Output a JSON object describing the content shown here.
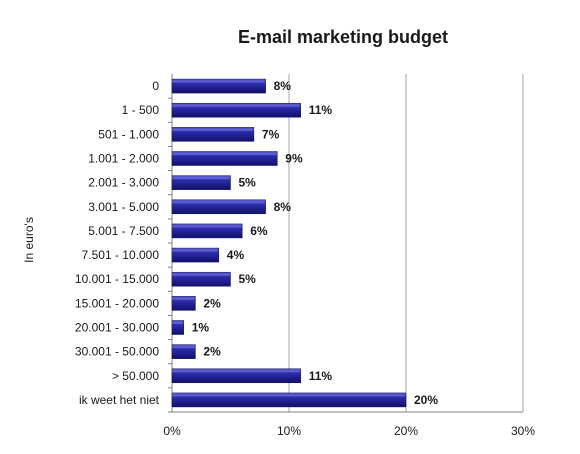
{
  "chart_data": {
    "type": "bar",
    "orientation": "horizontal",
    "title": "E-mail marketing budget",
    "xlabel": "",
    "ylabel": "In euro's",
    "xlim": [
      0,
      30
    ],
    "x_ticks": [
      "0%",
      "10%",
      "20%",
      "30%"
    ],
    "grid": "vertical",
    "categories": [
      "0",
      "1 - 500",
      "501 - 1.000",
      "1.001 - 2.000",
      "2.001 - 3.000",
      "3.001 - 5.000",
      "5.001 - 7.500",
      "7.501 - 10.000",
      "10.001 - 15.000",
      "15.001 - 20.000",
      "20.001 - 30.000",
      "30.001 - 50.000",
      "> 50.000",
      "ik weet het niet"
    ],
    "values": [
      8,
      11,
      7,
      9,
      5,
      8,
      6,
      4,
      5,
      2,
      1,
      2,
      11,
      20
    ],
    "value_labels": [
      "8%",
      "11%",
      "7%",
      "9%",
      "5%",
      "8%",
      "6%",
      "4%",
      "5%",
      "2%",
      "1%",
      "2%",
      "11%",
      "20%"
    ],
    "bar_color": "#1f1f8f"
  }
}
